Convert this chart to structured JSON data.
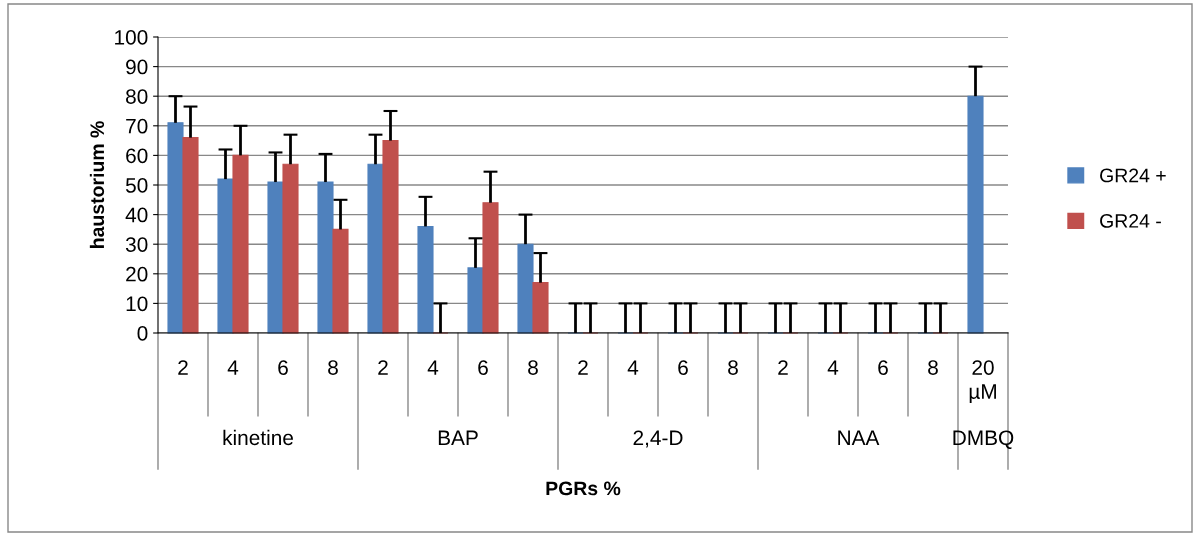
{
  "chart_data": {
    "type": "bar",
    "xlabel": "PGRs %",
    "ylabel": "haustorium %",
    "categories": [
      "2",
      "4",
      "6",
      "8",
      "2",
      "4",
      "6",
      "8",
      "2",
      "4",
      "6",
      "8",
      "2",
      "4",
      "6",
      "8",
      "20 µM"
    ],
    "annotations": [
      "kinetine",
      "BAP",
      "2,4-D",
      "NAA",
      "DMBQ"
    ],
    "series": [
      {
        "name": "GR24 +",
        "color": "#4f81bd",
        "values": [
          71,
          52,
          51,
          51,
          57,
          36,
          22,
          30,
          0,
          0,
          0,
          0,
          0,
          0,
          0,
          0,
          80
        ],
        "errors": [
          [
            71,
            80
          ],
          [
            52,
            62
          ],
          [
            51,
            61
          ],
          [
            51,
            60.5
          ],
          [
            57,
            67
          ],
          [
            36,
            46
          ],
          [
            22,
            32
          ],
          [
            30,
            40
          ],
          [
            0,
            10
          ],
          [
            0,
            10
          ],
          [
            0,
            10
          ],
          [
            0,
            10
          ],
          [
            0,
            10
          ],
          [
            0,
            10
          ],
          [
            0,
            10
          ],
          [
            0,
            10
          ],
          [
            80,
            90
          ]
        ]
      },
      {
        "name": "GR24 -",
        "color": "#c0504d",
        "values": [
          66,
          60,
          57,
          35,
          65,
          0,
          44,
          17,
          0,
          0,
          0,
          0,
          0,
          0,
          0,
          0,
          null
        ],
        "errors": [
          [
            66,
            76.5
          ],
          [
            60,
            70
          ],
          [
            57,
            67
          ],
          [
            35,
            45
          ],
          [
            65,
            75
          ],
          [
            0,
            10
          ],
          [
            44,
            54.5
          ],
          [
            17,
            27
          ],
          [
            0,
            10
          ],
          [
            0,
            10
          ],
          [
            0,
            10
          ],
          [
            0,
            10
          ],
          [
            0,
            10
          ],
          [
            0,
            10
          ],
          [
            0,
            10
          ],
          [
            0,
            10
          ],
          null
        ]
      }
    ],
    "ylim": [
      0,
      100
    ],
    "yticks": [
      0,
      10,
      20,
      30,
      40,
      50,
      60,
      70,
      80,
      90,
      100
    ],
    "grid": "y",
    "legend": "right"
  }
}
